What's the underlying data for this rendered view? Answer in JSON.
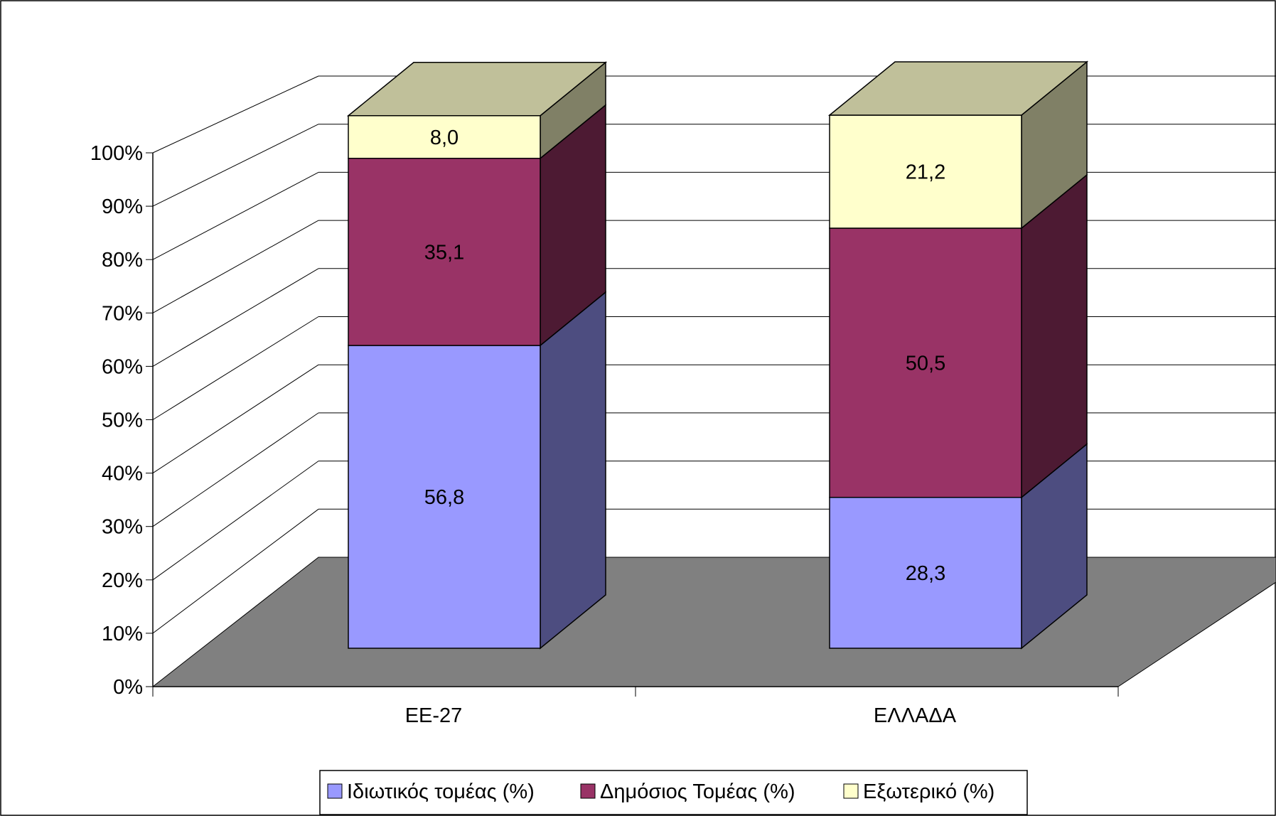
{
  "chart_data": {
    "type": "bar",
    "stacked": true,
    "three_d": true,
    "categories": [
      "ΕΕ-27",
      "ΕΛΛΑΔΑ"
    ],
    "series": [
      {
        "name": "Ιδιωτικός τομέας (%)",
        "values": [
          56.8,
          28.3
        ],
        "labels": [
          "56,8",
          "28,3"
        ],
        "color": "#9999ff",
        "side_color": "#4d4d80"
      },
      {
        "name": "Δημόσιος Τομέας (%)",
        "values": [
          35.1,
          50.5
        ],
        "labels": [
          "35,1",
          "50,5"
        ],
        "color": "#993366",
        "side_color": "#4d1a33"
      },
      {
        "name": "Εξωτερικό (%)",
        "values": [
          8.0,
          21.2
        ],
        "labels": [
          "8,0",
          "21,2"
        ],
        "color": "#ffffcc",
        "side_color": "#808066",
        "top_color": "#c0c09a"
      }
    ],
    "y_ticks": [
      "0%",
      "10%",
      "20%",
      "30%",
      "40%",
      "50%",
      "60%",
      "70%",
      "80%",
      "90%",
      "100%"
    ],
    "ylim": [
      0,
      100
    ],
    "grid": true,
    "legend_position": "bottom",
    "floor_color": "#808080"
  }
}
